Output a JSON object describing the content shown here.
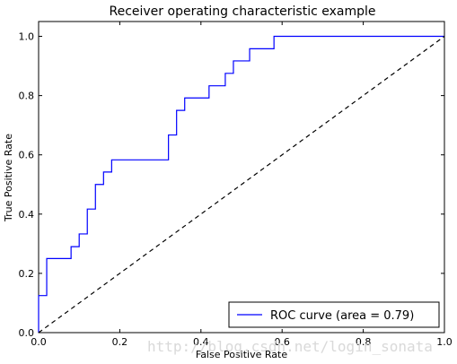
{
  "chart_data": {
    "type": "line",
    "title": "Receiver operating characteristic example",
    "xlabel": "False Positive Rate",
    "ylabel": "True Positive Rate",
    "xlim": [
      0.0,
      1.0
    ],
    "ylim": [
      0.0,
      1.05
    ],
    "xticks": [
      "0.0",
      "0.2",
      "0.4",
      "0.6",
      "0.8",
      "1.0"
    ],
    "yticks": [
      "0.0",
      "0.2",
      "0.4",
      "0.6",
      "0.8",
      "1.0"
    ],
    "grid": false,
    "legend_position": "lower-right",
    "series": [
      {
        "name": "ROC curve (area = 0.79)",
        "color": "#0000ff",
        "style": "step",
        "x": [
          0.0,
          0.0,
          0.02,
          0.02,
          0.08,
          0.08,
          0.1,
          0.1,
          0.12,
          0.12,
          0.14,
          0.14,
          0.16,
          0.16,
          0.18,
          0.18,
          0.32,
          0.32,
          0.34,
          0.34,
          0.36,
          0.36,
          0.42,
          0.42,
          0.46,
          0.46,
          0.48,
          0.48,
          0.52,
          0.52,
          0.58,
          0.58,
          1.0
        ],
        "y": [
          0.0,
          0.125,
          0.125,
          0.25,
          0.25,
          0.29,
          0.29,
          0.333,
          0.333,
          0.417,
          0.417,
          0.5,
          0.5,
          0.542,
          0.542,
          0.583,
          0.583,
          0.667,
          0.667,
          0.75,
          0.75,
          0.792,
          0.792,
          0.833,
          0.833,
          0.875,
          0.875,
          0.917,
          0.917,
          0.958,
          0.958,
          1.0,
          1.0
        ]
      },
      {
        "name": "",
        "color": "#000000",
        "style": "dashed",
        "x": [
          0.0,
          1.0
        ],
        "y": [
          0.0,
          1.0
        ]
      }
    ]
  },
  "watermark": "http://blog.csdn.net/login_sonata"
}
